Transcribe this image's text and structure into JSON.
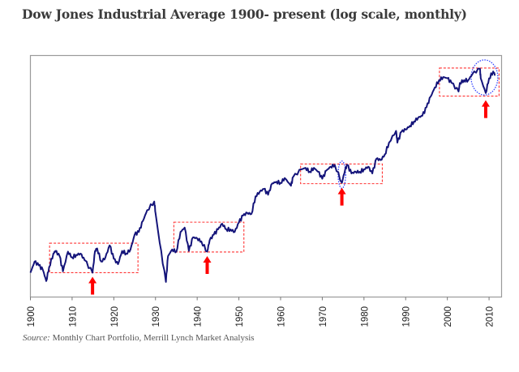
{
  "title": "Dow Jones Industrial Average 1900- present (log scale, monthly)",
  "source": {
    "label": "Source:",
    "text": " Monthly Chart Portfolio, Merrill Lynch Market Analysis"
  },
  "chart_data": {
    "type": "line",
    "title": "Dow Jones Industrial Average 1900- present (log scale, monthly)",
    "xlabel": "",
    "ylabel": "",
    "x_ticks": [
      "1900",
      "1910",
      "1920",
      "1930",
      "1940",
      "1950",
      "1960",
      "1970",
      "1980",
      "1990",
      "2000",
      "2010"
    ],
    "xlim": [
      1900,
      2013
    ],
    "ylim": [
      27,
      21800
    ],
    "y_scale": "log",
    "y_tick_labels_shown": false,
    "grid": false,
    "line_color": "#14147a",
    "series": [
      {
        "x": [
          1900,
          1901,
          1902,
          1903,
          1903.8,
          1904.5,
          1905.5,
          1906,
          1907,
          1907.8,
          1909,
          1910,
          1911,
          1912,
          1913,
          1914.9,
          1915.5,
          1916,
          1917,
          1918,
          1919,
          1920,
          1921,
          1922,
          1923,
          1924,
          1925,
          1926,
          1927,
          1928,
          1929.7,
          1930,
          1931,
          1932.5,
          1933,
          1934,
          1935,
          1936,
          1937,
          1938,
          1939,
          1940,
          1941,
          1942.4,
          1943,
          1944,
          1945,
          1946,
          1947,
          1948,
          1949,
          1950,
          1951,
          1952,
          1953,
          1954,
          1955,
          1956,
          1957,
          1958,
          1959,
          1960,
          1961,
          1962.5,
          1963,
          1965,
          1966,
          1967,
          1968,
          1969,
          1970,
          1971,
          1972,
          1973,
          1974.7,
          1975.5,
          1976,
          1977,
          1978,
          1979,
          1980,
          1981,
          1982,
          1983,
          1984,
          1985,
          1986,
          1987.7,
          1988,
          1989,
          1990,
          1991,
          1992,
          1993,
          1994,
          1995,
          1996,
          1997,
          1998,
          1999,
          2000,
          2001,
          2002.7,
          2003,
          2004,
          2005,
          2006,
          2007.8,
          2008,
          2009.2,
          2010,
          2011,
          2011.5
        ],
        "values": [
          53,
          72,
          65,
          57,
          42,
          62,
          90,
          97,
          84,
          55,
          95,
          81,
          87,
          90,
          75,
          53,
          97,
          104,
          72,
          81,
          113,
          78,
          67,
          97,
          90,
          101,
          152,
          164,
          223,
          300,
          381,
          280,
          122,
          41,
          84,
          101,
          95,
          164,
          185,
          97,
          141,
          137,
          126,
          95,
          131,
          152,
          176,
          206,
          176,
          176,
          164,
          213,
          258,
          278,
          270,
          440,
          500,
          540,
          460,
          630,
          660,
          640,
          730,
          590,
          750,
          930,
          970,
          870,
          970,
          870,
          715,
          900,
          1000,
          1050,
          640,
          930,
          1050,
          830,
          870,
          870,
          930,
          1000,
          830,
          1250,
          1200,
          1400,
          1950,
          2700,
          1950,
          2640,
          2800,
          3100,
          3500,
          3900,
          4100,
          5200,
          7000,
          9000,
          11000,
          12000,
          11600,
          10200,
          8050,
          10200,
          11000,
          11000,
          13000,
          15200,
          11600,
          7700,
          11600,
          14000,
          12600
        ]
      }
    ],
    "annotations": {
      "boxes": [
        {
          "x": [
            1904.6,
            1925.8
          ],
          "y": [
            53,
            120
          ],
          "color": "#ff3333",
          "style": "dashed"
        },
        {
          "x": [
            1934.4,
            1951.2
          ],
          "y": [
            94,
            215
          ],
          "color": "#ff3333",
          "style": "dashed"
        },
        {
          "x": [
            1964.8,
            1984.4
          ],
          "y": [
            625,
            1080
          ],
          "color": "#ff3333",
          "style": "dashed"
        },
        {
          "x": [
            1998.1,
            2012.4
          ],
          "y": [
            7080,
            15400
          ],
          "color": "#ff3333",
          "style": "dashed"
        }
      ],
      "ellipses": [
        {
          "x": [
            1973.8,
            1975.6
          ],
          "y": [
            550,
            1170
          ],
          "color": "#3344ff",
          "style": "dotted"
        },
        {
          "x": [
            2005.7,
            2012.1
          ],
          "y": [
            7300,
            19300
          ],
          "color": "#3344ff",
          "style": "dotted"
        }
      ],
      "arrows": [
        {
          "x": 1914.9,
          "points_to": 53,
          "color": "#ff0000"
        },
        {
          "x": 1942.4,
          "points_to": 94,
          "color": "#ff0000"
        },
        {
          "x": 1974.7,
          "points_to": 625,
          "color": "#ff0000"
        },
        {
          "x": 2009.2,
          "points_to": 7080,
          "color": "#ff0000"
        }
      ]
    }
  }
}
